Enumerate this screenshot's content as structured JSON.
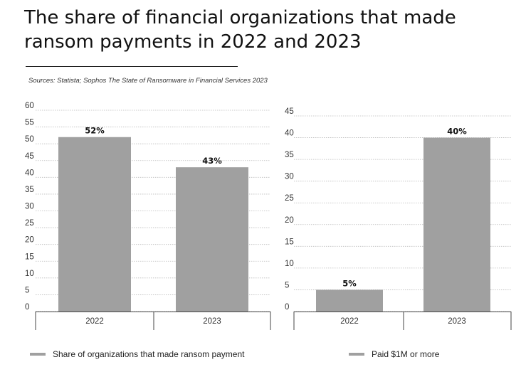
{
  "title": "The share of financial organizations that made ransom payments in 2022 and 2023",
  "sources": "Sources: Statista;  Sophos The State of Ransomware in Financial Services 2023",
  "bar_color": "#a0a0a0",
  "grid_color": "#bbbbbb",
  "chart_data": [
    {
      "type": "bar",
      "categories": [
        "2022",
        "2023"
      ],
      "series": [
        {
          "name": "Share of organizations that made ransom payment",
          "values": [
            52,
            43
          ]
        }
      ],
      "data_labels": [
        "52%",
        "43%"
      ],
      "ylim": [
        0,
        60
      ],
      "yticks": [
        0,
        5,
        10,
        15,
        20,
        25,
        30,
        35,
        40,
        45,
        50,
        55,
        60
      ],
      "grid": true,
      "legend_position": "bottom"
    },
    {
      "type": "bar",
      "categories": [
        "2022",
        "2023"
      ],
      "series": [
        {
          "name": "Paid $1M or more",
          "values": [
            5,
            40
          ]
        }
      ],
      "data_labels": [
        "5%",
        "40%"
      ],
      "ylim": [
        0,
        45
      ],
      "yticks": [
        0,
        5,
        10,
        15,
        20,
        25,
        30,
        35,
        40,
        45
      ],
      "grid": true,
      "legend_position": "bottom"
    }
  ]
}
